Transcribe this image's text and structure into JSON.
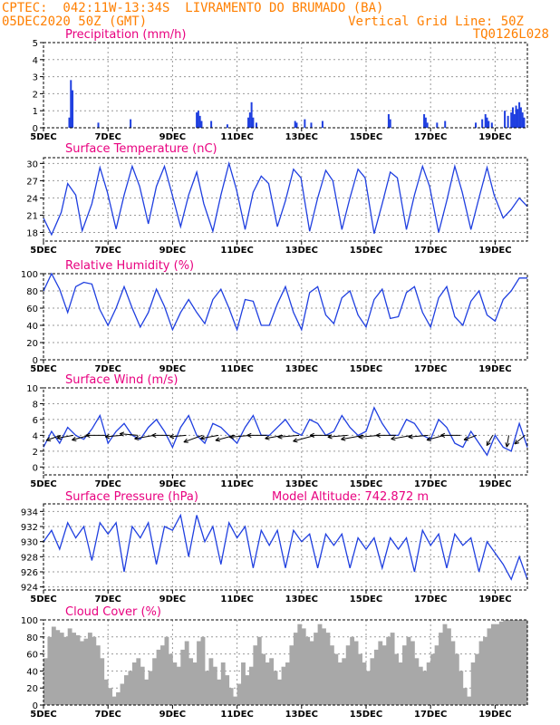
{
  "header": {
    "line1_left": "CPTEC:  042:11W-13:34S  LIVRAMENTO DO BRUMADO (BA)",
    "line2_left": "05DEC2020 50Z (GMT)",
    "line2_right": "Vertical Grid Line: 50Z",
    "line3_right": "TQ0126L028"
  },
  "colors": {
    "header": "#ff7f00",
    "title": "#e8007f",
    "series": "#1f3fe0",
    "grid": "#9a9a9a",
    "cloud": "#a8a8a8"
  },
  "x_tick_labels": [
    "5DEC",
    "7DEC",
    "9DEC",
    "11DEC",
    "13DEC",
    "15DEC",
    "17DEC",
    "19DEC"
  ],
  "x_tick_days": [
    5,
    7,
    9,
    11,
    13,
    15,
    17,
    19
  ],
  "x_range_days": [
    5,
    20
  ],
  "chart_data": [
    {
      "id": "precip",
      "type": "bar",
      "title": "Precipitation (mm/h)",
      "ylim": [
        0,
        5
      ],
      "yticks": [
        0,
        1,
        2,
        3,
        4,
        5
      ],
      "grid": true,
      "x_days": [
        5.8,
        5.85,
        5.9,
        6.7,
        7.7,
        9.75,
        9.8,
        9.85,
        9.9,
        10.2,
        10.7,
        11.35,
        11.4,
        11.45,
        11.5,
        11.6,
        12.8,
        12.85,
        13.1,
        13.3,
        13.65,
        15.7,
        15.75,
        16.8,
        16.85,
        16.9,
        17.2,
        17.45,
        18.4,
        18.6,
        18.7,
        18.75,
        18.8,
        18.9,
        19.3,
        19.4,
        19.5,
        19.55,
        19.6,
        19.65,
        19.7,
        19.75,
        19.8,
        19.85,
        19.9
      ],
      "values": [
        0.6,
        2.8,
        2.2,
        0.3,
        0.5,
        0.9,
        1.0,
        0.7,
        0.4,
        0.4,
        0.2,
        0.6,
        0.9,
        1.5,
        0.6,
        0.3,
        0.4,
        0.3,
        0.5,
        0.3,
        0.4,
        0.8,
        0.5,
        0.8,
        0.6,
        0.3,
        0.3,
        0.4,
        0.3,
        0.5,
        0.8,
        0.6,
        0.4,
        0.3,
        1.0,
        0.7,
        0.9,
        1.2,
        0.8,
        1.3,
        1.1,
        1.5,
        1.2,
        0.9,
        0.6
      ]
    },
    {
      "id": "temp",
      "type": "line",
      "title": "Surface Temperature (nC)",
      "ylim": [
        16.5,
        31
      ],
      "yticks": [
        18,
        21,
        24,
        27,
        30
      ],
      "grid": true,
      "x_days": [
        5.0,
        5.25,
        5.55,
        5.75,
        6.0,
        6.2,
        6.5,
        6.75,
        6.98,
        7.25,
        7.5,
        7.75,
        7.98,
        8.25,
        8.5,
        8.75,
        8.97,
        9.25,
        9.5,
        9.75,
        9.97,
        10.25,
        10.5,
        10.75,
        10.98,
        11.25,
        11.5,
        11.75,
        11.98,
        12.25,
        12.5,
        12.75,
        12.98,
        13.25,
        13.5,
        13.75,
        13.97,
        14.25,
        14.5,
        14.75,
        14.97,
        15.25,
        15.5,
        15.75,
        15.97,
        16.25,
        16.5,
        16.75,
        16.97,
        17.25,
        17.5,
        17.75,
        17.98,
        18.25,
        18.5,
        18.75,
        18.97,
        19.25,
        19.5,
        19.75,
        20.0
      ],
      "values": [
        20.5,
        17.6,
        21.5,
        26.5,
        24.5,
        18.3,
        23.0,
        29.3,
        25.0,
        18.6,
        24.5,
        29.5,
        26.0,
        19.5,
        26.0,
        29.5,
        25.0,
        19.0,
        24.5,
        28.5,
        23.0,
        18.2,
        24.5,
        30.0,
        25.5,
        18.5,
        25.0,
        27.8,
        26.5,
        19.0,
        23.5,
        29.0,
        27.5,
        18.2,
        24.0,
        28.8,
        27.0,
        18.5,
        24.0,
        29.0,
        27.5,
        17.8,
        23.0,
        28.5,
        27.5,
        18.5,
        24.5,
        29.5,
        26.0,
        18.0,
        23.5,
        29.5,
        25.0,
        18.5,
        24.0,
        29.3,
        24.5,
        20.5,
        22.0,
        24.0,
        22.5
      ]
    },
    {
      "id": "rh",
      "type": "line",
      "title": "Relative Humidity (%)",
      "ylim": [
        0,
        100
      ],
      "yticks": [
        0,
        20,
        40,
        60,
        80,
        100
      ],
      "grid": true,
      "x_days": [
        5.0,
        5.25,
        5.5,
        5.75,
        6.0,
        6.25,
        6.5,
        6.75,
        7.0,
        7.25,
        7.5,
        7.75,
        8.0,
        8.25,
        8.5,
        8.75,
        9.0,
        9.25,
        9.5,
        9.75,
        10.0,
        10.25,
        10.5,
        10.75,
        11.0,
        11.25,
        11.5,
        11.75,
        12.0,
        12.25,
        12.5,
        12.75,
        13.0,
        13.25,
        13.5,
        13.75,
        14.0,
        14.25,
        14.5,
        14.75,
        15.0,
        15.25,
        15.5,
        15.75,
        16.0,
        16.25,
        16.5,
        16.75,
        17.0,
        17.25,
        17.5,
        17.75,
        18.0,
        18.25,
        18.5,
        18.75,
        19.0,
        19.25,
        19.5,
        19.75,
        20.0
      ],
      "values": [
        80,
        100,
        82,
        55,
        85,
        90,
        88,
        58,
        40,
        60,
        85,
        60,
        38,
        55,
        82,
        62,
        35,
        55,
        70,
        55,
        42,
        70,
        82,
        60,
        35,
        70,
        68,
        40,
        40,
        65,
        85,
        55,
        35,
        78,
        85,
        52,
        42,
        72,
        80,
        52,
        38,
        70,
        82,
        48,
        50,
        78,
        85,
        55,
        38,
        72,
        85,
        50,
        40,
        68,
        80,
        52,
        45,
        70,
        80,
        95,
        95
      ]
    },
    {
      "id": "wind",
      "type": "line",
      "title": "Surface Wind (m/s)",
      "ylim": [
        -1,
        10
      ],
      "yticks": [
        0,
        2,
        4,
        6,
        8,
        10
      ],
      "grid": true,
      "x_days": [
        5.0,
        5.25,
        5.5,
        5.75,
        6.0,
        6.25,
        6.5,
        6.75,
        7.0,
        7.25,
        7.5,
        7.75,
        8.0,
        8.25,
        8.5,
        8.75,
        9.0,
        9.25,
        9.5,
        9.75,
        10.0,
        10.25,
        10.5,
        10.75,
        11.0,
        11.25,
        11.5,
        11.75,
        12.0,
        12.25,
        12.5,
        12.75,
        13.0,
        13.25,
        13.5,
        13.75,
        14.0,
        14.25,
        14.5,
        14.75,
        15.0,
        15.25,
        15.5,
        15.75,
        16.0,
        16.25,
        16.5,
        16.75,
        17.0,
        17.25,
        17.5,
        17.75,
        18.0,
        18.25,
        18.5,
        18.75,
        19.0,
        19.25,
        19.5,
        19.75,
        20.0
      ],
      "values": [
        2.5,
        4.5,
        3.0,
        5.0,
        4.0,
        3.5,
        4.8,
        6.5,
        3.0,
        4.5,
        5.5,
        4.0,
        3.5,
        5.0,
        6.0,
        4.5,
        2.5,
        5.0,
        6.5,
        4.0,
        3.0,
        5.5,
        5.0,
        4.0,
        3.0,
        5.0,
        6.5,
        4.0,
        4.0,
        5.0,
        6.0,
        4.5,
        4.0,
        6.0,
        5.5,
        4.0,
        4.5,
        6.5,
        5.0,
        4.0,
        4.5,
        7.5,
        5.5,
        4.0,
        4.0,
        6.0,
        5.5,
        4.0,
        3.5,
        6.0,
        5.0,
        3.0,
        2.5,
        4.5,
        3.0,
        1.5,
        4.0,
        2.5,
        2.0,
        5.5,
        2.5
      ],
      "arrows": {
        "x_days": [
          5.3,
          5.7,
          6.2,
          6.7,
          7.2,
          7.7,
          8.2,
          8.7,
          9.2,
          9.7,
          10.2,
          10.7,
          11.2,
          11.7,
          12.2,
          12.7,
          13.2,
          13.7,
          14.2,
          14.7,
          15.2,
          15.7,
          16.2,
          16.7,
          17.2,
          17.7,
          18.2,
          18.7,
          19.2,
          19.7
        ],
        "dir_deg": [
          200,
          190,
          195,
          180,
          185,
          175,
          190,
          180,
          185,
          200,
          190,
          195,
          185,
          180,
          190,
          185,
          195,
          180,
          185,
          190,
          185,
          180,
          190,
          185,
          195,
          180,
          200,
          240,
          260,
          220
        ],
        "speed": [
          3.0,
          3.5,
          4.0,
          4.5,
          3.5,
          4.0,
          4.5,
          4.0,
          3.5,
          4.5,
          4.0,
          4.5,
          5.0,
          4.5,
          4.0,
          5.0,
          5.5,
          5.0,
          4.5,
          5.5,
          5.0,
          4.5,
          5.0,
          4.5,
          4.0,
          4.5,
          2.5,
          2.0,
          2.0,
          2.5
        ]
      }
    },
    {
      "id": "pres",
      "type": "line",
      "title": "Surface Pressure (hPa)",
      "annotation": "Model Altitude: 742.872 m",
      "ylim": [
        923.6,
        935
      ],
      "yticks": [
        924,
        926,
        928,
        930,
        932,
        934
      ],
      "grid": true,
      "x_days": [
        5.0,
        5.25,
        5.5,
        5.75,
        6.0,
        6.25,
        6.5,
        6.75,
        7.0,
        7.25,
        7.5,
        7.75,
        8.0,
        8.25,
        8.5,
        8.75,
        9.0,
        9.25,
        9.5,
        9.75,
        10.0,
        10.25,
        10.5,
        10.75,
        11.0,
        11.25,
        11.5,
        11.75,
        12.0,
        12.25,
        12.5,
        12.75,
        13.0,
        13.25,
        13.5,
        13.75,
        14.0,
        14.25,
        14.5,
        14.75,
        15.0,
        15.25,
        15.5,
        15.75,
        16.0,
        16.25,
        16.5,
        16.75,
        17.0,
        17.25,
        17.5,
        17.75,
        18.0,
        18.25,
        18.5,
        18.75,
        19.0,
        19.25,
        19.5,
        19.75,
        20.0
      ],
      "values": [
        930.0,
        931.5,
        929.0,
        932.5,
        930.5,
        932.0,
        927.5,
        932.5,
        931.0,
        932.5,
        926.0,
        932.0,
        930.5,
        932.5,
        927.0,
        932.0,
        931.5,
        933.5,
        928.0,
        933.5,
        930.0,
        932.0,
        927.0,
        932.5,
        930.5,
        932.0,
        926.5,
        931.5,
        929.5,
        931.5,
        926.5,
        931.5,
        930.0,
        931.0,
        926.5,
        931.0,
        929.5,
        931.0,
        926.5,
        930.5,
        929.0,
        930.5,
        926.5,
        930.5,
        929.0,
        930.5,
        926.0,
        931.5,
        929.5,
        931.0,
        926.5,
        931.0,
        929.5,
        930.5,
        926.0,
        930.0,
        928.5,
        927.0,
        925.0,
        928.0,
        925.0
      ]
    },
    {
      "id": "cloud",
      "type": "bar",
      "title": "Cloud Cover (%)",
      "ylim": [
        0,
        100
      ],
      "yticks": [
        0,
        20,
        40,
        60,
        80,
        100
      ],
      "grid": true,
      "x_days": [
        5.0,
        5.125,
        5.25,
        5.375,
        5.5,
        5.625,
        5.75,
        5.875,
        6.0,
        6.125,
        6.25,
        6.375,
        6.5,
        6.625,
        6.75,
        6.875,
        7.0,
        7.125,
        7.25,
        7.375,
        7.5,
        7.625,
        7.75,
        7.875,
        8.0,
        8.125,
        8.25,
        8.375,
        8.5,
        8.625,
        8.75,
        8.875,
        9.0,
        9.125,
        9.25,
        9.375,
        9.5,
        9.625,
        9.75,
        9.875,
        10.0,
        10.125,
        10.25,
        10.375,
        10.5,
        10.625,
        10.75,
        10.875,
        11.0,
        11.125,
        11.25,
        11.375,
        11.5,
        11.625,
        11.75,
        11.875,
        12.0,
        12.125,
        12.25,
        12.375,
        12.5,
        12.625,
        12.75,
        12.875,
        13.0,
        13.125,
        13.25,
        13.375,
        13.5,
        13.625,
        13.75,
        13.875,
        14.0,
        14.125,
        14.25,
        14.375,
        14.5,
        14.625,
        14.75,
        14.875,
        15.0,
        15.125,
        15.25,
        15.375,
        15.5,
        15.625,
        15.75,
        15.875,
        16.0,
        16.125,
        16.25,
        16.375,
        16.5,
        16.625,
        16.75,
        16.875,
        17.0,
        17.125,
        17.25,
        17.375,
        17.5,
        17.625,
        17.75,
        17.875,
        18.0,
        18.125,
        18.25,
        18.375,
        18.5,
        18.625,
        18.75,
        18.875,
        19.0,
        19.125,
        19.25,
        19.375,
        19.5,
        19.625,
        19.75,
        19.875
      ],
      "values": [
        55,
        80,
        92,
        88,
        85,
        80,
        90,
        85,
        82,
        75,
        78,
        85,
        80,
        70,
        55,
        30,
        20,
        10,
        15,
        25,
        35,
        40,
        50,
        55,
        45,
        30,
        40,
        55,
        65,
        70,
        80,
        60,
        50,
        45,
        65,
        75,
        55,
        50,
        75,
        80,
        40,
        55,
        45,
        30,
        50,
        35,
        20,
        10,
        25,
        50,
        35,
        45,
        70,
        80,
        60,
        50,
        55,
        40,
        30,
        45,
        50,
        70,
        85,
        95,
        90,
        80,
        75,
        85,
        95,
        90,
        85,
        70,
        60,
        50,
        55,
        70,
        80,
        75,
        60,
        50,
        40,
        55,
        65,
        75,
        70,
        80,
        85,
        60,
        50,
        70,
        80,
        75,
        55,
        45,
        40,
        50,
        60,
        70,
        85,
        95,
        90,
        75,
        60,
        40,
        20,
        10,
        50,
        60,
        75,
        80,
        90,
        95,
        95,
        98,
        100,
        100,
        100,
        100,
        100,
        100
      ]
    }
  ]
}
